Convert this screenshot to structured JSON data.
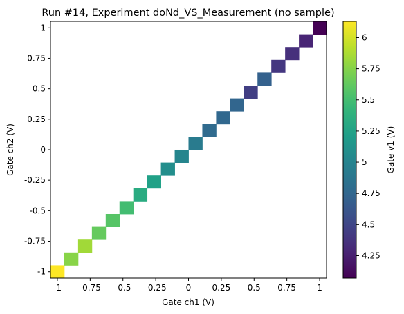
{
  "chart_data": {
    "type": "heatmap",
    "title": "Run #14, Experiment doNd_VS_Measurement (no sample)",
    "xlabel": "Gate ch1 (V)",
    "ylabel": "Gate ch2 (V)",
    "colorbar_label": "Gate v1 (V)",
    "xlim": [
      -1.0526,
      1.0526
    ],
    "ylim": [
      -1.0526,
      1.0526
    ],
    "x_ticks": [
      {
        "value": -1,
        "label": "-1"
      },
      {
        "value": -0.75,
        "label": "-0.75"
      },
      {
        "value": -0.5,
        "label": "-0.5"
      },
      {
        "value": -0.25,
        "label": "-0.25"
      },
      {
        "value": 0,
        "label": "0"
      },
      {
        "value": 0.25,
        "label": "0.25"
      },
      {
        "value": 0.5,
        "label": "0.5"
      },
      {
        "value": 0.75,
        "label": "0.75"
      },
      {
        "value": 1,
        "label": "1"
      }
    ],
    "y_ticks": [
      {
        "value": -1,
        "label": "-1"
      },
      {
        "value": -0.75,
        "label": "-0.75"
      },
      {
        "value": -0.5,
        "label": "-0.5"
      },
      {
        "value": -0.25,
        "label": "-0.25"
      },
      {
        "value": 0,
        "label": "0"
      },
      {
        "value": 0.25,
        "label": "0.25"
      },
      {
        "value": 0.5,
        "label": "0.5"
      },
      {
        "value": 0.75,
        "label": "0.75"
      },
      {
        "value": 1,
        "label": "1"
      }
    ],
    "colorbar": {
      "colormap": "viridis",
      "vmin": 4.07,
      "vmax": 6.13,
      "ticks": [
        {
          "value": 4.25,
          "label": "4.25"
        },
        {
          "value": 4.5,
          "label": "4.5"
        },
        {
          "value": 4.75,
          "label": "4.75"
        },
        {
          "value": 5,
          "label": "5"
        },
        {
          "value": 5.25,
          "label": "5.25"
        },
        {
          "value": 5.5,
          "label": "5.5"
        },
        {
          "value": 5.75,
          "label": "5.75"
        },
        {
          "value": 6,
          "label": "6"
        }
      ]
    },
    "cell_size": 0.10526,
    "points": [
      {
        "x": -1.0,
        "y": -1.0,
        "value": 6.13
      },
      {
        "x": -0.8947,
        "y": -0.8947,
        "value": 5.76
      },
      {
        "x": -0.7895,
        "y": -0.7895,
        "value": 5.84
      },
      {
        "x": -0.6842,
        "y": -0.6842,
        "value": 5.64
      },
      {
        "x": -0.5789,
        "y": -0.5789,
        "value": 5.58
      },
      {
        "x": -0.4737,
        "y": -0.4737,
        "value": 5.5
      },
      {
        "x": -0.3684,
        "y": -0.3684,
        "value": 5.33
      },
      {
        "x": -0.2632,
        "y": -0.2632,
        "value": 5.24
      },
      {
        "x": -0.1579,
        "y": -0.1579,
        "value": 5.08
      },
      {
        "x": -0.0526,
        "y": -0.0526,
        "value": 5.01
      },
      {
        "x": 0.0526,
        "y": 0.0526,
        "value": 4.92
      },
      {
        "x": 0.1579,
        "y": 0.1579,
        "value": 4.78
      },
      {
        "x": 0.2632,
        "y": 0.2632,
        "value": 4.76
      },
      {
        "x": 0.3684,
        "y": 0.3684,
        "value": 4.74
      },
      {
        "x": 0.4737,
        "y": 0.4737,
        "value": 4.45
      },
      {
        "x": 0.5789,
        "y": 0.5789,
        "value": 4.7
      },
      {
        "x": 0.6842,
        "y": 0.6842,
        "value": 4.4
      },
      {
        "x": 0.7895,
        "y": 0.7895,
        "value": 4.35
      },
      {
        "x": 0.8947,
        "y": 0.8947,
        "value": 4.28
      },
      {
        "x": 1.0,
        "y": 1.0,
        "value": 4.07
      }
    ]
  }
}
